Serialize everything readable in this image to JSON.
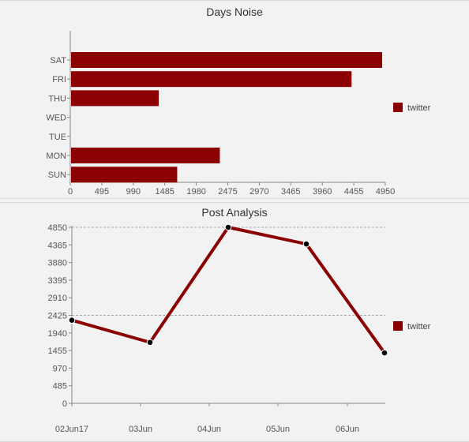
{
  "chart_data": [
    {
      "type": "bar",
      "orientation": "horizontal",
      "title": "Days Noise",
      "categories": [
        "SAT",
        "FRI",
        "THU",
        "WED",
        "TUE",
        "MON",
        "SUN"
      ],
      "series": [
        {
          "name": "twitter",
          "values": [
            4900,
            4420,
            1390,
            0,
            0,
            2350,
            1680
          ]
        }
      ],
      "xticks": [
        "0",
        "495",
        "990",
        "1485",
        "1980",
        "2475",
        "2970",
        "3465",
        "3960",
        "4455",
        "4950"
      ],
      "xlim": [
        0,
        4950
      ],
      "legend": "right",
      "color": "#8b0000"
    },
    {
      "type": "line",
      "title": "Post Analysis",
      "x": [
        "02Jun17",
        "03Jun",
        "04Jun",
        "05Jun",
        "06Jun"
      ],
      "series": [
        {
          "name": "twitter",
          "values": [
            2290,
            1680,
            4850,
            4390,
            1390
          ]
        }
      ],
      "yticks": [
        "4850",
        "4365",
        "3880",
        "3395",
        "2910",
        "2425",
        "1940",
        "1455",
        "970",
        "485",
        "0"
      ],
      "ylim": [
        0,
        4850
      ],
      "grid_lines": [
        4850,
        2425
      ],
      "legend": "right",
      "color": "#8b0000"
    }
  ]
}
